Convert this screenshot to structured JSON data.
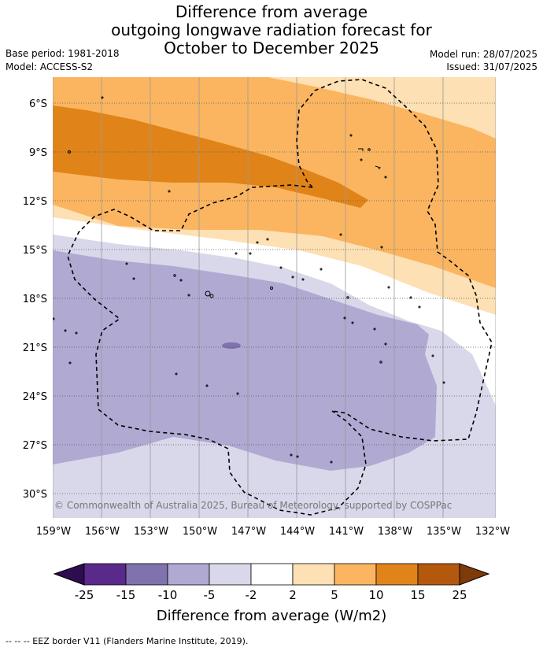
{
  "title": {
    "line1": "Difference from average",
    "line2": "outgoing longwave radiation forecast for",
    "line3": "October to December 2025"
  },
  "meta": {
    "base_period": "Base period: 1981-2018",
    "model": "Model: ACCESS-S2",
    "model_run": "Model run: 28/07/2025",
    "issued": "Issued: 31/07/2025"
  },
  "map": {
    "latitude_labels": [
      "6°S",
      "9°S",
      "12°S",
      "15°S",
      "18°S",
      "21°S",
      "24°S",
      "27°S",
      "30°S"
    ],
    "longitude_labels": [
      "159°W",
      "156°W",
      "153°W",
      "150°W",
      "147°W",
      "144°W",
      "141°W",
      "138°W",
      "135°W",
      "132°W"
    ],
    "copyright": "© Commonwealth of Australia 2025, Bureau of Meteorology, supported by COSPPac"
  },
  "colorbar": {
    "ticks": [
      "-25",
      "-15",
      "-10",
      "-5",
      "-2",
      "2",
      "5",
      "10",
      "15",
      "25"
    ],
    "colors": [
      "#2d0d50",
      "#5a2a8a",
      "#7f72ad",
      "#b0a9d2",
      "#d8d8ea",
      "#ffffff",
      "#fde0b3",
      "#fbb560",
      "#e08419",
      "#b4580e",
      "#7f3a0a"
    ],
    "title": "Difference from average (W/m2)"
  },
  "footnote": "--  --  -- EEZ border V11 (Flanders Marine Institute, 2019)."
}
